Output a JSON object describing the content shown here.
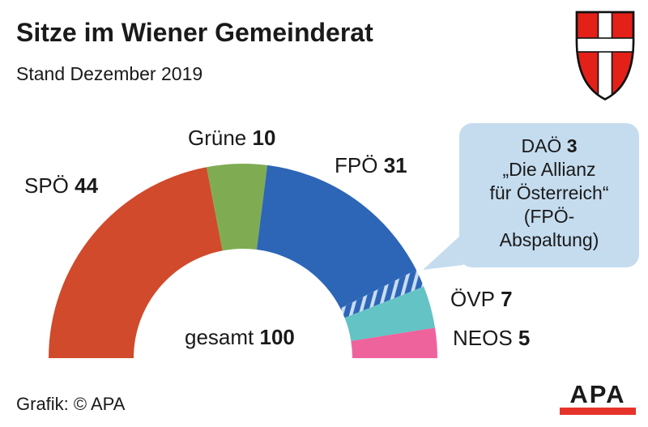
{
  "header": {
    "title": "Sitze im Wiener Gemeinderat",
    "subtitle": "Stand Dezember 2019"
  },
  "chart_data": {
    "type": "half-donut",
    "title": "Sitze im Wiener Gemeinderat",
    "subtitle": "Stand Dezember 2019",
    "total": {
      "label": "gesamt",
      "value": 100
    },
    "legend_position": "around-arc",
    "series": [
      {
        "key": "spoe",
        "party": "SPÖ",
        "seats": 44,
        "color": "#D04A2B"
      },
      {
        "key": "gruene",
        "party": "Grüne",
        "seats": 10,
        "color": "#7FAC52"
      },
      {
        "key": "fpoe",
        "party": "FPÖ",
        "seats": 31,
        "color": "#2D65B7"
      },
      {
        "key": "daoe",
        "party": "DAÖ",
        "seats": 3,
        "color": "#2D65B7",
        "hatched": true,
        "hatch_color": "#C9DDF1"
      },
      {
        "key": "oevp",
        "party": "ÖVP",
        "seats": 7,
        "color": "#63C3C5"
      },
      {
        "key": "neos",
        "party": "NEOS",
        "seats": 5,
        "color": "#EF639D"
      }
    ]
  },
  "callout": {
    "bg": "#C5DCEF",
    "lines": [
      "„Die Allianz",
      "für Österreich“",
      "(FPÖ-",
      "Abspaltung)"
    ]
  },
  "footer": {
    "credit": "Grafik: © APA",
    "logo_text": "APA",
    "logo_bar_color": "#E6332A"
  },
  "icons": {
    "vienna_shield_red": "#E32119",
    "vienna_shield_cross": "#FFFFFF"
  }
}
